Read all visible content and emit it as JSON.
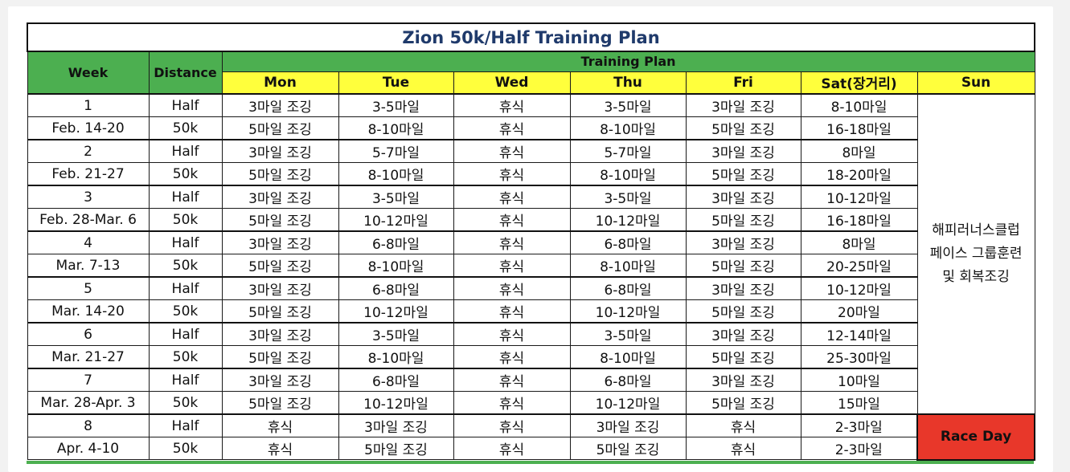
{
  "title": "Zion 50k/Half Training Plan",
  "headers": {
    "week": "Week",
    "distance": "Distance",
    "training_plan": "Training Plan",
    "days": [
      "Mon",
      "Tue",
      "Wed",
      "Thu",
      "Fri",
      "Sat(장거리)",
      "Sun"
    ]
  },
  "rows": [
    {
      "label": "1",
      "distance": "Half",
      "cells": [
        "3마일 조깅",
        "3-5마일",
        "휴식",
        "3-5마일",
        "3마일 조깅",
        "8-10마일"
      ]
    },
    {
      "label": "Feb. 14-20",
      "distance": "50k",
      "cells": [
        "5마일 조깅",
        "8-10마일",
        "휴식",
        "8-10마일",
        "5마일 조깅",
        "16-18마일"
      ]
    },
    {
      "label": "2",
      "distance": "Half",
      "cells": [
        "3마일 조깅",
        "5-7마일",
        "휴식",
        "5-7마일",
        "3마일 조깅",
        "8마일"
      ]
    },
    {
      "label": "Feb. 21-27",
      "distance": "50k",
      "cells": [
        "5마일 조깅",
        "8-10마일",
        "휴식",
        "8-10마일",
        "5마일 조깅",
        "18-20마일"
      ]
    },
    {
      "label": "3",
      "distance": "Half",
      "cells": [
        "3마일 조깅",
        "3-5마일",
        "휴식",
        "3-5마일",
        "3마일 조깅",
        "10-12마일"
      ]
    },
    {
      "label": "Feb. 28-Mar. 6",
      "distance": "50k",
      "cells": [
        "5마일 조깅",
        "10-12마일",
        "휴식",
        "10-12마일",
        "5마일 조깅",
        "16-18마일"
      ]
    },
    {
      "label": "4",
      "distance": "Half",
      "cells": [
        "3마일 조깅",
        "6-8마일",
        "휴식",
        "6-8마일",
        "3마일 조깅",
        "8마일"
      ]
    },
    {
      "label": "Mar. 7-13",
      "distance": "50k",
      "cells": [
        "5마일 조깅",
        "8-10마일",
        "휴식",
        "8-10마일",
        "5마일 조깅",
        "20-25마일"
      ]
    },
    {
      "label": "5",
      "distance": "Half",
      "cells": [
        "3마일 조깅",
        "6-8마일",
        "휴식",
        "6-8마일",
        "3마일 조깅",
        "10-12마일"
      ]
    },
    {
      "label": "Mar. 14-20",
      "distance": "50k",
      "cells": [
        "5마일 조깅",
        "10-12마일",
        "휴식",
        "10-12마일",
        "5마일 조깅",
        "20마일"
      ]
    },
    {
      "label": "6",
      "distance": "Half",
      "cells": [
        "3마일 조깅",
        "3-5마일",
        "휴식",
        "3-5마일",
        "3마일 조깅",
        "12-14마일"
      ]
    },
    {
      "label": "Mar. 21-27",
      "distance": "50k",
      "cells": [
        "5마일 조깅",
        "8-10마일",
        "휴식",
        "8-10마일",
        "5마일 조깅",
        "25-30마일"
      ]
    },
    {
      "label": "7",
      "distance": "Half",
      "cells": [
        "3마일 조깅",
        "6-8마일",
        "휴식",
        "6-8마일",
        "3마일 조깅",
        "10마일"
      ]
    },
    {
      "label": "Mar. 28-Apr. 3",
      "distance": "50k",
      "cells": [
        "5마일 조깅",
        "10-12마일",
        "휴식",
        "10-12마일",
        "5마일 조깅",
        "15마일"
      ]
    },
    {
      "label": "8",
      "distance": "Half",
      "cells": [
        "휴식",
        "3마일 조깅",
        "휴식",
        "3마일 조깅",
        "휴식",
        "2-3마일"
      ]
    },
    {
      "label": "Apr. 4-10",
      "distance": "50k",
      "cells": [
        "휴식",
        "5마일 조깅",
        "휴식",
        "5마일 조깅",
        "휴식",
        "2-3마일"
      ]
    }
  ],
  "sunday_note": {
    "line1": "해피러너스클럽",
    "line2": "페이스 그룹훈련",
    "line3": "및 회복조깅"
  },
  "race_day": "Race Day",
  "colors": {
    "header_green": "#4caf50",
    "header_yellow": "#ffff3c",
    "race_red": "#e8372a",
    "title_blue": "#1f3a6b"
  }
}
